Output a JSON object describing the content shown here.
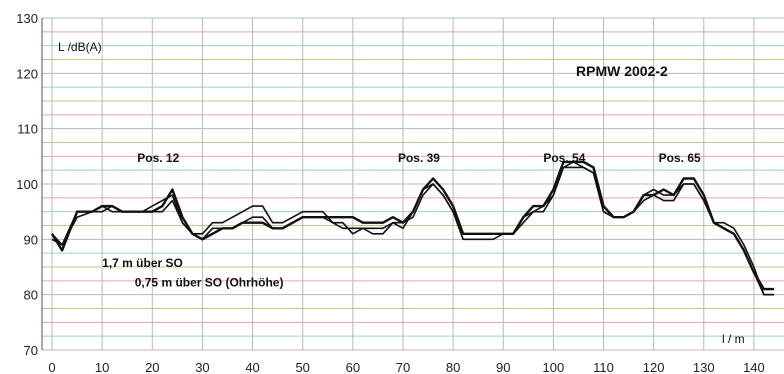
{
  "chart_data": {
    "type": "line",
    "title": "RPMW 2002-2",
    "ylabel": "L /dB(A)",
    "xlabel": "l / m",
    "xlim": [
      -2,
      146
    ],
    "ylim": [
      70,
      130
    ],
    "xticks": [
      0,
      10,
      20,
      30,
      40,
      50,
      60,
      70,
      80,
      90,
      100,
      110,
      120,
      130,
      140
    ],
    "yticks": [
      70,
      80,
      90,
      100,
      110,
      120,
      130
    ],
    "grid": true,
    "grid_color": "#b8b8b8",
    "band_colors": [
      "#e6a3b3",
      "#bcc68e",
      "#9ecfd7"
    ],
    "line_color": "#111111",
    "annotations": [
      {
        "text": "Pos. 12",
        "x": 17,
        "y": 104
      },
      {
        "text": "Pos. 39",
        "x": 69,
        "y": 104
      },
      {
        "text": "Pos. 54",
        "x": 98,
        "y": 104
      },
      {
        "text": "Pos. 65",
        "x": 121,
        "y": 104
      }
    ],
    "series_labels": [
      {
        "text": "1,7 m über SO",
        "x": 10,
        "y": 85
      },
      {
        "text": "0,75 m über SO (Ohrhöhe)",
        "x": 16.5,
        "y": 81.5
      }
    ],
    "series": [
      {
        "name": "1,7 m über SO",
        "x": [
          0,
          2,
          5,
          8,
          10,
          12,
          14,
          16,
          18,
          20,
          22,
          24,
          26,
          28,
          30,
          32,
          34,
          36,
          38,
          40,
          42,
          44,
          46,
          48,
          50,
          52,
          54,
          56,
          58,
          60,
          62,
          64,
          66,
          68,
          70,
          72,
          74,
          76,
          78,
          80,
          82,
          84,
          86,
          88,
          90,
          92,
          94,
          96,
          98,
          100,
          102,
          104,
          106,
          108,
          110,
          112,
          114,
          116,
          118,
          120,
          122,
          124,
          126,
          128,
          130,
          132,
          134,
          136,
          138,
          140,
          142,
          144
        ],
        "y": [
          91,
          88,
          95,
          95,
          96,
          96,
          95,
          95,
          95,
          95,
          96,
          99,
          94,
          91,
          90,
          91,
          92,
          92,
          93,
          93,
          93,
          92,
          92,
          93,
          94,
          94,
          94,
          94,
          94,
          94,
          93,
          93,
          93,
          94,
          93,
          95,
          99,
          101,
          99,
          96,
          91,
          91,
          91,
          91,
          91,
          91,
          94,
          96,
          96,
          99,
          104,
          104,
          104,
          103,
          96,
          94,
          94,
          95,
          98,
          98,
          99,
          98,
          101,
          101,
          98,
          93,
          92,
          91,
          88,
          84,
          81,
          81
        ]
      },
      {
        "name": "0,75 m über SO (Ohrhöhe)",
        "x": [
          0,
          2,
          5,
          8,
          10,
          12,
          14,
          16,
          18,
          20,
          22,
          24,
          26,
          28,
          30,
          32,
          34,
          36,
          38,
          40,
          42,
          44,
          46,
          48,
          50,
          52,
          54,
          56,
          58,
          60,
          62,
          64,
          66,
          68,
          70,
          72,
          74,
          76,
          78,
          80,
          82,
          84,
          86,
          88,
          90,
          92,
          94,
          96,
          98,
          100,
          102,
          104,
          106,
          108,
          110,
          112,
          114,
          116,
          118,
          120,
          122,
          124,
          126,
          128,
          130,
          132,
          134,
          136,
          138,
          140,
          142,
          144
        ],
        "y": [
          90,
          89,
          94,
          95,
          95,
          96,
          95,
          95,
          95,
          95,
          95,
          97,
          93,
          91,
          91,
          93,
          93,
          94,
          95,
          96,
          96,
          93,
          93,
          94,
          95,
          95,
          95,
          93,
          93,
          91,
          92,
          91,
          91,
          93,
          93,
          94,
          98,
          100,
          98,
          95,
          90,
          90,
          90,
          90,
          91,
          91,
          93,
          95,
          95,
          98,
          103,
          104,
          103,
          102,
          95,
          94,
          94,
          95,
          97,
          98,
          97,
          97,
          100,
          100,
          97,
          93,
          93,
          92,
          89,
          85,
          80,
          80
        ]
      },
      {
        "name": "",
        "x": [
          0,
          2,
          5,
          8,
          10,
          12,
          14,
          16,
          18,
          20,
          22,
          24,
          26,
          28,
          30,
          32,
          34,
          36,
          38,
          40,
          42,
          44,
          46,
          48,
          50,
          52,
          54,
          56,
          58,
          60,
          62,
          64,
          66,
          68,
          70,
          72,
          74,
          76,
          78,
          80,
          82,
          84,
          86,
          88,
          90,
          92,
          94,
          96,
          98,
          100,
          102,
          104,
          106,
          108,
          110,
          112,
          114,
          116,
          118,
          120,
          122,
          124,
          126,
          128,
          130,
          132,
          134,
          136,
          138,
          140,
          142,
          144
        ],
        "y": [
          91,
          89,
          95,
          95,
          96,
          95,
          95,
          95,
          95,
          96,
          97,
          98,
          93,
          91,
          90,
          92,
          92,
          92,
          93,
          94,
          94,
          92,
          92,
          93,
          94,
          94,
          94,
          93,
          92,
          92,
          92,
          92,
          92,
          93,
          92,
          95,
          99,
          100,
          98,
          95,
          91,
          91,
          91,
          91,
          91,
          91,
          94,
          95,
          96,
          98,
          103,
          103,
          103,
          102,
          95,
          94,
          94,
          95,
          98,
          99,
          98,
          98,
          100,
          100,
          97,
          93,
          92,
          91,
          88,
          84,
          80,
          80
        ]
      }
    ]
  }
}
